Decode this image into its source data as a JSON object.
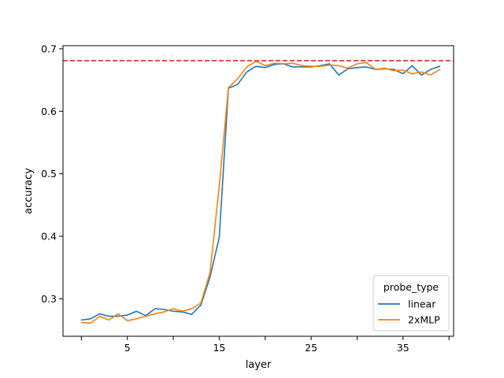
{
  "chart_data": {
    "type": "line",
    "xlabel": "layer",
    "ylabel": "accuracy",
    "xlim": [
      -2,
      40.5
    ],
    "ylim": [
      0.24,
      0.705
    ],
    "xticks_labeled": [
      5,
      15,
      25,
      35
    ],
    "xticks_minor": [
      0,
      10,
      20,
      30,
      40
    ],
    "yticks": [
      0.3,
      0.4,
      0.5,
      0.6,
      0.7
    ],
    "ytick_labels": [
      "0.3",
      "0.4",
      "0.5",
      "0.6",
      "0.7"
    ],
    "reference_line": {
      "y": 0.681,
      "color": "#d62728",
      "style": "dashed"
    },
    "legend": {
      "title": "probe_type",
      "position": "lower-right"
    },
    "x": [
      0,
      1,
      2,
      3,
      4,
      5,
      6,
      7,
      8,
      9,
      10,
      11,
      12,
      13,
      14,
      15,
      16,
      17,
      18,
      19,
      20,
      21,
      22,
      23,
      24,
      25,
      26,
      27,
      28,
      29,
      30,
      31,
      32,
      33,
      34,
      35,
      36,
      37,
      38,
      39
    ],
    "series": [
      {
        "name": "linear",
        "color": "#1f77b4",
        "values": [
          0.266,
          0.268,
          0.276,
          0.272,
          0.272,
          0.274,
          0.28,
          0.273,
          0.284,
          0.283,
          0.28,
          0.279,
          0.275,
          0.29,
          0.335,
          0.398,
          0.637,
          0.643,
          0.663,
          0.672,
          0.67,
          0.675,
          0.676,
          0.671,
          0.671,
          0.671,
          0.673,
          0.676,
          0.658,
          0.668,
          0.67,
          0.671,
          0.667,
          0.668,
          0.667,
          0.66,
          0.673,
          0.658,
          0.667,
          0.672
        ]
      },
      {
        "name": "2xMLP",
        "color": "#ff7f0e",
        "values": [
          0.262,
          0.261,
          0.272,
          0.266,
          0.276,
          0.265,
          0.268,
          0.272,
          0.276,
          0.279,
          0.284,
          0.28,
          0.284,
          0.293,
          0.342,
          0.48,
          0.638,
          0.652,
          0.671,
          0.68,
          0.673,
          0.677,
          0.676,
          0.677,
          0.673,
          0.672,
          0.672,
          0.674,
          0.673,
          0.669,
          0.676,
          0.678,
          0.667,
          0.669,
          0.665,
          0.666,
          0.66,
          0.663,
          0.658,
          0.667
        ]
      }
    ]
  }
}
